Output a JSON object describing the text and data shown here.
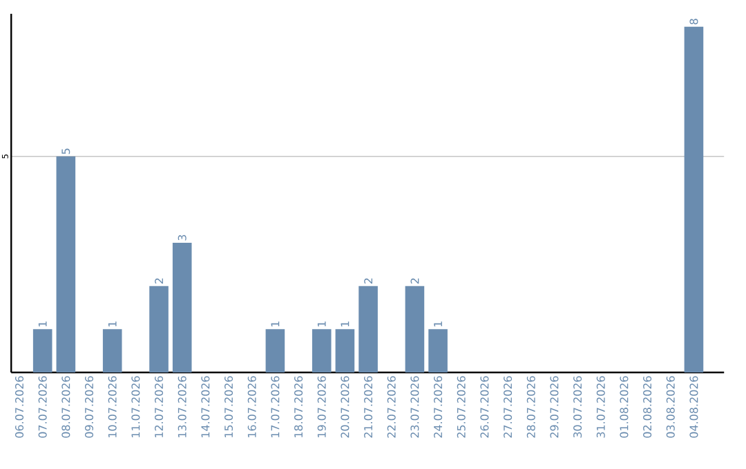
{
  "chart_data": {
    "type": "bar",
    "categories": [
      "06.07.2026",
      "07.07.2026",
      "08.07.2026",
      "09.07.2026",
      "10.07.2026",
      "11.07.2026",
      "12.07.2026",
      "13.07.2026",
      "14.07.2026",
      "15.07.2026",
      "16.07.2026",
      "17.07.2026",
      "18.07.2026",
      "19.07.2026",
      "20.07.2026",
      "21.07.2026",
      "22.07.2026",
      "23.07.2026",
      "24.07.2026",
      "25.07.2026",
      "26.07.2026",
      "27.07.2026",
      "28.07.2026",
      "29.07.2026",
      "30.07.2026",
      "31.07.2026",
      "01.08.2026",
      "02.08.2026",
      "03.08.2026",
      "04.08.2026"
    ],
    "values": [
      0,
      1,
      5,
      0,
      1,
      0,
      2,
      3,
      0,
      0,
      0,
      1,
      0,
      1,
      1,
      2,
      0,
      2,
      1,
      0,
      0,
      0,
      0,
      0,
      0,
      0,
      0,
      0,
      0,
      8
    ],
    "value_labels": [
      null,
      "1",
      "5",
      null,
      "1",
      null,
      "2",
      "3",
      null,
      null,
      null,
      "1",
      null,
      "1",
      "1",
      "2",
      null,
      "2",
      "1",
      null,
      null,
      null,
      null,
      null,
      null,
      null,
      null,
      null,
      null,
      "8"
    ],
    "color": "#6a8caf",
    "ylim": [
      0,
      8.3
    ],
    "yticks": [
      5
    ],
    "grid": "y"
  }
}
